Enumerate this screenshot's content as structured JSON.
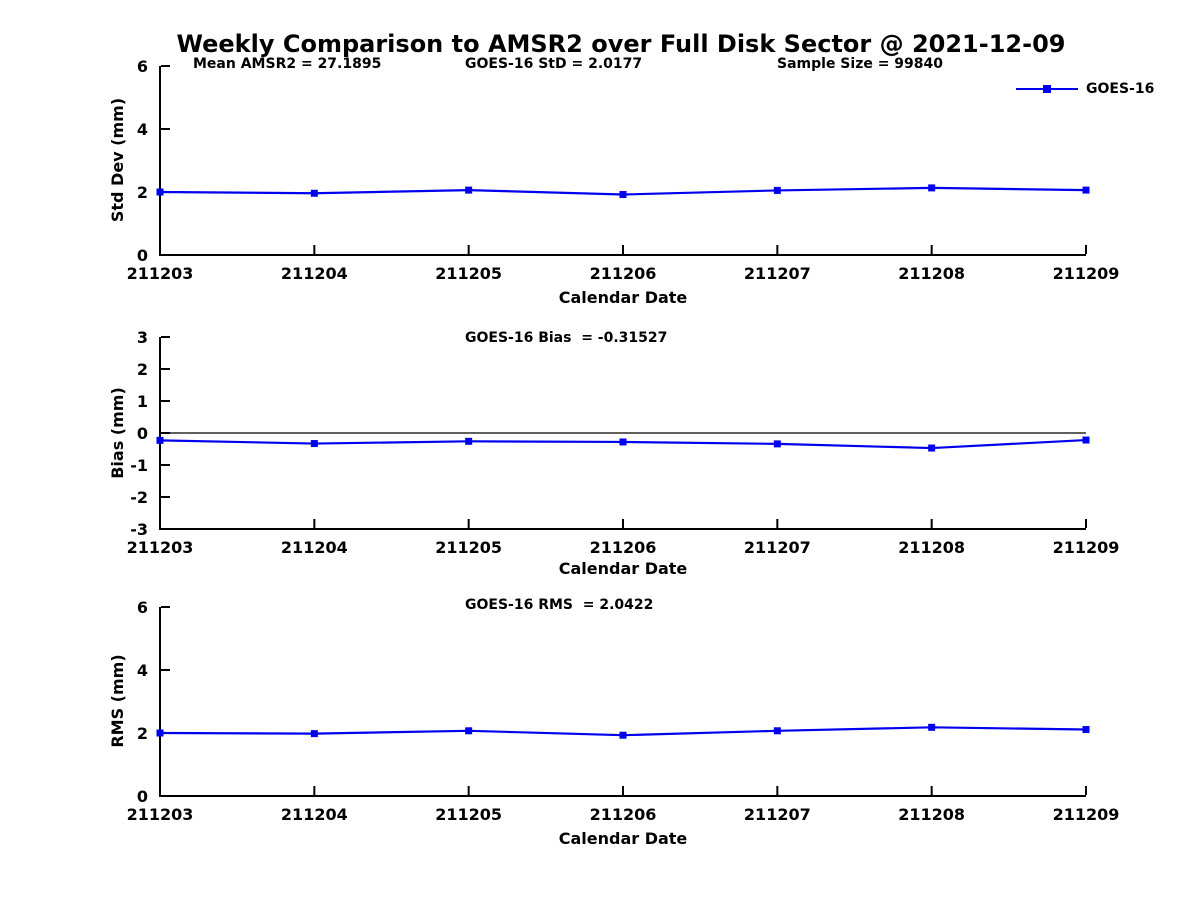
{
  "title": "Weekly Comparison to AMSR2 over Full Disk Sector @ 2021-12-09",
  "colors": {
    "series": "#0000EE",
    "axis": "#000000",
    "zero_line": "#000000",
    "background": "#FFFFFF"
  },
  "legend": {
    "label": "GOES-16"
  },
  "chart_data": [
    {
      "type": "line",
      "name": "stddev",
      "annotations": [
        "Mean AMSR2 = 27.1895",
        "GOES-16 StD = 2.0177",
        "Sample Size = 99840"
      ],
      "ylabel": "Std Dev (mm)",
      "xlabel": "Calendar Date",
      "ylim": [
        0,
        6
      ],
      "yticks": [
        0,
        2,
        4,
        6
      ],
      "categories": [
        "211203",
        "211204",
        "211205",
        "211206",
        "211207",
        "211208",
        "211209"
      ],
      "series": [
        {
          "name": "GOES-16",
          "values": [
            2.0,
            1.96,
            2.06,
            1.92,
            2.05,
            2.13,
            2.06
          ]
        }
      ],
      "zero_line": false,
      "grid": false,
      "legend_position": "top-right"
    },
    {
      "type": "line",
      "name": "bias",
      "annotations": [
        "GOES-16 Bias  = -0.31527"
      ],
      "ylabel": "Bias (mm)",
      "xlabel": "Calendar Date",
      "ylim": [
        -3,
        3
      ],
      "yticks": [
        -3,
        -2,
        -1,
        0,
        1,
        2,
        3
      ],
      "categories": [
        "211203",
        "211204",
        "211205",
        "211206",
        "211207",
        "211208",
        "211209"
      ],
      "series": [
        {
          "name": "GOES-16",
          "values": [
            -0.23,
            -0.33,
            -0.26,
            -0.28,
            -0.34,
            -0.47,
            -0.22
          ]
        }
      ],
      "zero_line": true,
      "grid": false,
      "legend_position": "none"
    },
    {
      "type": "line",
      "name": "rms",
      "annotations": [
        "GOES-16 RMS  = 2.0422"
      ],
      "ylabel": "RMS (mm)",
      "xlabel": "Calendar Date",
      "ylim": [
        0,
        6
      ],
      "yticks": [
        0,
        2,
        4,
        6
      ],
      "categories": [
        "211203",
        "211204",
        "211205",
        "211206",
        "211207",
        "211208",
        "211209"
      ],
      "series": [
        {
          "name": "GOES-16",
          "values": [
            2.0,
            1.98,
            2.07,
            1.93,
            2.07,
            2.18,
            2.11
          ]
        }
      ],
      "zero_line": false,
      "grid": false,
      "legend_position": "none"
    }
  ]
}
